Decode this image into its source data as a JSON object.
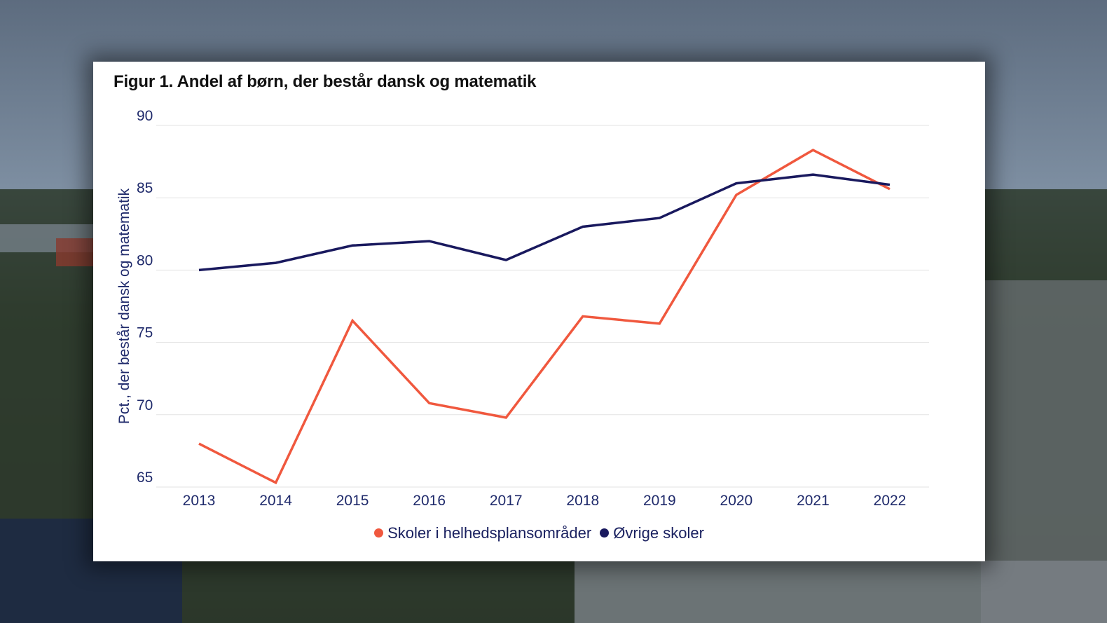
{
  "page": {
    "title": "Figur 1. Andel af børn, der består dansk og matematik"
  },
  "colors": {
    "helhedsplan": "#f0583e",
    "ovrige": "#19195e",
    "axis_text": "#1f2a6b",
    "grid": "#e3e3e3"
  },
  "chart_data": {
    "type": "line",
    "title": "Figur 1. Andel af børn, der består dansk og matematik",
    "ylabel": "Pct., der består dansk og matematik",
    "xlabel": "",
    "categories": [
      "2013",
      "2014",
      "2015",
      "2016",
      "2017",
      "2018",
      "2019",
      "2020",
      "2021",
      "2022"
    ],
    "ylim": [
      65,
      90
    ],
    "yticks": [
      65,
      70,
      75,
      80,
      85,
      90
    ],
    "grid": true,
    "legend_position": "bottom-center",
    "series": [
      {
        "name": "Skoler i helhedsplansområder",
        "color": "#f0583e",
        "values": [
          68.0,
          65.3,
          76.5,
          70.8,
          69.8,
          76.8,
          76.3,
          85.2,
          88.3,
          85.6
        ]
      },
      {
        "name": "Øvrige skoler",
        "color": "#19195e",
        "values": [
          80.0,
          80.5,
          81.7,
          82.0,
          80.7,
          83.0,
          83.6,
          86.0,
          86.6,
          85.9
        ]
      }
    ]
  }
}
